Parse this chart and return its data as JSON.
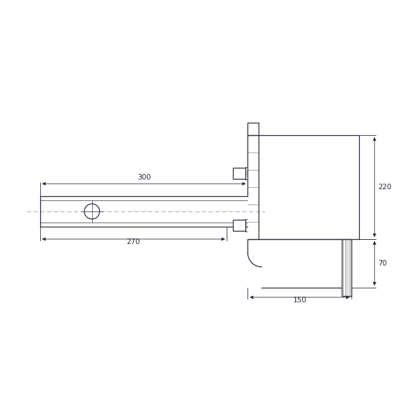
{
  "bg_color": "#ffffff",
  "line_color": "#2a2a3a",
  "dim_color": "#2a2a3a",
  "line_width": 0.9,
  "thin_line": 0.5,
  "fig_size": [
    5.9,
    5.9
  ],
  "dpi": 100,
  "dimensions": {
    "label_300": "300",
    "label_270": "270",
    "label_220": "220",
    "label_70": "70",
    "label_150": "150"
  }
}
